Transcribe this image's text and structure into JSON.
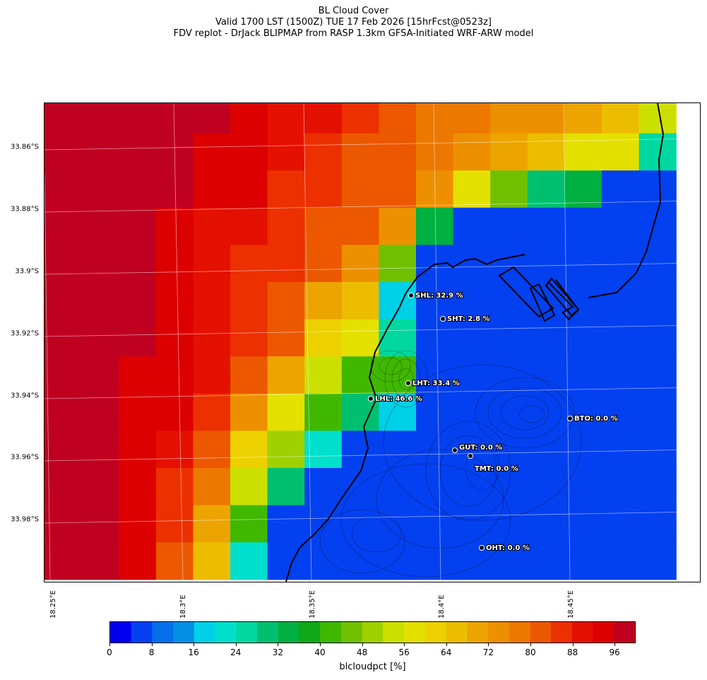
{
  "header": {
    "line1": "BL Cloud Cover",
    "line2": "Valid 1700 LST (1500Z) TUE 17 Feb 2026 [15hrFcst@0523z]",
    "line3": "FDV replot - DrJack BLIPMAP from RASP 1.3km GFSA-Initiated WRF-ARW model"
  },
  "axes": {
    "lat_labels": [
      "33.86°S",
      "33.88°S",
      "33.9°S",
      "33.92°S",
      "33.94°S",
      "33.96°S",
      "33.98°S"
    ],
    "lon_labels": [
      "18.25°E",
      "18.3°E",
      "18.35°E",
      "18.4°E",
      "18.45°E"
    ]
  },
  "stations": [
    {
      "code": "SHL",
      "label": "SHL: 32.9 %"
    },
    {
      "code": "SHT",
      "label": "SHT: 2.8 %"
    },
    {
      "code": "LHT",
      "label": "LHT: 33.4 %"
    },
    {
      "code": "LHL",
      "label": "LHL: 46.6 %"
    },
    {
      "code": "BTO",
      "label": "BTO: 0.0 %"
    },
    {
      "code": "GUT",
      "label": "GUT: 0.0 %"
    },
    {
      "code": "TMT",
      "label": "TMT: 0.0 %"
    },
    {
      "code": "OHT",
      "label": "OHT: 0.0 %"
    }
  ],
  "colorbar": {
    "label": "blcloudpct [%]",
    "ticks": [
      "0",
      "8",
      "16",
      "24",
      "32",
      "40",
      "48",
      "56",
      "64",
      "72",
      "80",
      "88",
      "96"
    ],
    "colors": [
      "#0000ee",
      "#0340f0",
      "#0570ea",
      "#0590e6",
      "#00d0e6",
      "#00e0cc",
      "#00d8a0",
      "#00c070",
      "#00b040",
      "#10a818",
      "#40b800",
      "#70c000",
      "#a0d000",
      "#cce000",
      "#e4e000",
      "#ecd000",
      "#ecbc00",
      "#eca400",
      "#ec9000",
      "#ec7800",
      "#ec5800",
      "#ec3000",
      "#e41000",
      "#dc0000",
      "#c00020"
    ],
    "max": 100
  },
  "grid_values": [
    [
      96,
      96,
      96,
      96,
      96,
      92,
      90,
      88,
      84,
      80,
      76,
      76,
      72,
      72,
      68,
      64,
      52
    ],
    [
      96,
      96,
      96,
      96,
      92,
      92,
      88,
      84,
      80,
      80,
      76,
      72,
      70,
      64,
      56,
      56,
      24
    ],
    [
      96,
      96,
      96,
      96,
      92,
      92,
      86,
      84,
      80,
      80,
      72,
      56,
      46,
      28,
      32,
      4,
      4
    ],
    [
      96,
      96,
      96,
      92,
      88,
      88,
      84,
      82,
      80,
      72,
      32,
      4,
      4,
      4,
      4,
      4,
      4
    ],
    [
      96,
      96,
      96,
      92,
      88,
      86,
      84,
      80,
      72,
      44,
      4,
      4,
      4,
      4,
      4,
      4,
      4
    ],
    [
      96,
      96,
      96,
      92,
      88,
      84,
      82,
      68,
      64,
      16,
      4,
      4,
      4,
      4,
      4,
      4,
      4
    ],
    [
      96,
      96,
      96,
      92,
      88,
      84,
      80,
      62,
      58,
      24,
      4,
      4,
      4,
      4,
      4,
      4,
      4
    ],
    [
      96,
      96,
      92,
      92,
      88,
      80,
      68,
      52,
      40,
      40,
      4,
      4,
      4,
      4,
      4,
      4,
      4
    ],
    [
      96,
      96,
      92,
      92,
      84,
      72,
      58,
      40,
      30,
      16,
      4,
      4,
      4,
      4,
      4,
      4,
      4
    ],
    [
      96,
      96,
      92,
      88,
      80,
      60,
      48,
      20,
      4,
      4,
      4,
      4,
      4,
      4,
      4,
      4,
      4
    ],
    [
      96,
      96,
      92,
      84,
      76,
      52,
      28,
      4,
      4,
      4,
      4,
      4,
      4,
      4,
      4,
      4,
      4
    ],
    [
      96,
      96,
      92,
      84,
      70,
      40,
      4,
      4,
      4,
      4,
      4,
      4,
      4,
      4,
      4,
      4,
      4
    ],
    [
      96,
      96,
      92,
      80,
      64,
      20,
      4,
      4,
      4,
      4,
      4,
      4,
      4,
      4,
      4,
      4,
      4
    ]
  ]
}
